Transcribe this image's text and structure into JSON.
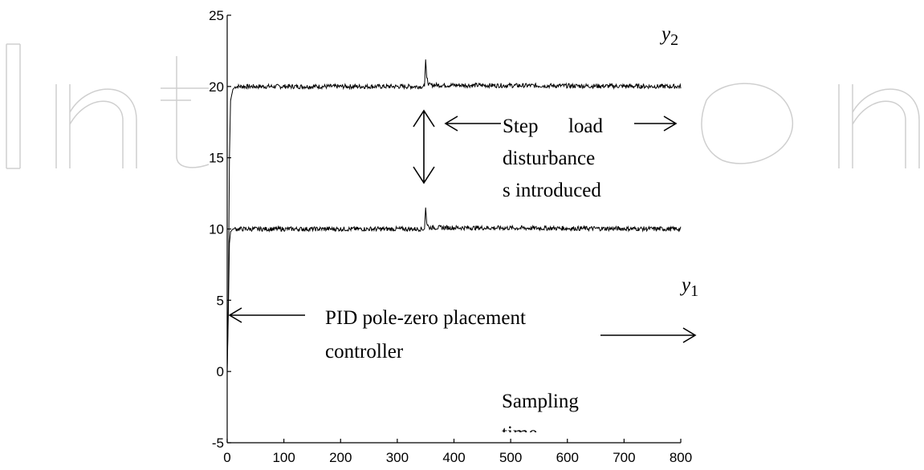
{
  "chart_data": {
    "type": "line",
    "title": "",
    "xlabel": "",
    "ylabel": "",
    "xlim": [
      0,
      800
    ],
    "ylim": [
      -5,
      25
    ],
    "x_ticks": [
      0,
      100,
      200,
      300,
      400,
      500,
      600,
      700,
      800
    ],
    "y_ticks": [
      -5,
      0,
      5,
      10,
      15,
      20,
      25
    ],
    "grid": false,
    "series": [
      {
        "name": "y2",
        "x": [
          0,
          2,
          4,
          6,
          10,
          15,
          20,
          348,
          350,
          352,
          356,
          800
        ],
        "y": [
          0,
          5,
          15,
          19,
          19.8,
          20,
          20,
          20,
          21.9,
          20.6,
          20.1,
          20
        ]
      },
      {
        "name": "y1",
        "x": [
          0,
          2,
          4,
          6,
          10,
          15,
          348,
          350,
          352,
          356,
          800
        ],
        "y": [
          0,
          4,
          9,
          9.8,
          10,
          10,
          10,
          11.5,
          10.4,
          10.1,
          10
        ]
      }
    ],
    "series_labels": [
      {
        "base": "y",
        "sub": "2"
      },
      {
        "base": "y",
        "sub": "1"
      }
    ],
    "annotations": {
      "disturbance_lines": [
        "Step      load",
        "disturbance",
        "s introduced"
      ],
      "controller_lines": [
        "PID pole-zero placement",
        "controller"
      ],
      "sampling_lines": [
        "Sampling",
        "time"
      ]
    }
  },
  "watermark": "IntechOpen"
}
